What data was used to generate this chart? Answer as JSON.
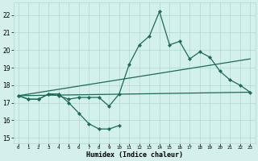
{
  "xlabel": "Humidex (Indice chaleur)",
  "bg_color": "#d4f0ec",
  "grid_color": "#b0d8d4",
  "line_color": "#1a6b5a",
  "xlim": [
    -0.5,
    23.5
  ],
  "ylim": [
    14.7,
    22.7
  ],
  "yticks": [
    15,
    16,
    17,
    18,
    19,
    20,
    21,
    22
  ],
  "xticks": [
    0,
    1,
    2,
    3,
    4,
    5,
    6,
    7,
    8,
    9,
    10,
    11,
    12,
    13,
    14,
    15,
    16,
    17,
    18,
    19,
    20,
    21,
    22,
    23
  ],
  "series1_x": [
    0,
    1,
    2,
    3,
    4,
    5,
    6,
    7,
    8,
    9,
    10
  ],
  "series1_y": [
    17.4,
    17.2,
    17.2,
    17.5,
    17.5,
    17.0,
    16.4,
    15.8,
    15.5,
    15.5,
    15.7
  ],
  "series2_x": [
    0,
    1,
    2,
    3,
    4,
    5,
    6,
    7,
    8,
    9,
    10,
    11,
    12,
    13,
    14,
    15,
    16,
    17,
    18,
    19,
    20,
    21,
    22,
    23
  ],
  "series2_y": [
    17.4,
    17.2,
    17.2,
    17.5,
    17.4,
    17.2,
    17.3,
    17.3,
    17.3,
    16.8,
    17.5,
    19.2,
    20.3,
    20.8,
    22.2,
    20.3,
    20.5,
    19.5,
    19.9,
    19.6,
    18.8,
    18.3,
    18.0,
    17.6
  ],
  "series3_x": [
    0,
    23
  ],
  "series3_y": [
    17.4,
    19.5
  ],
  "series4_x": [
    0,
    23
  ],
  "series4_y": [
    17.4,
    17.6
  ],
  "marker": "D",
  "markersize": 2.2,
  "linewidth": 0.9
}
